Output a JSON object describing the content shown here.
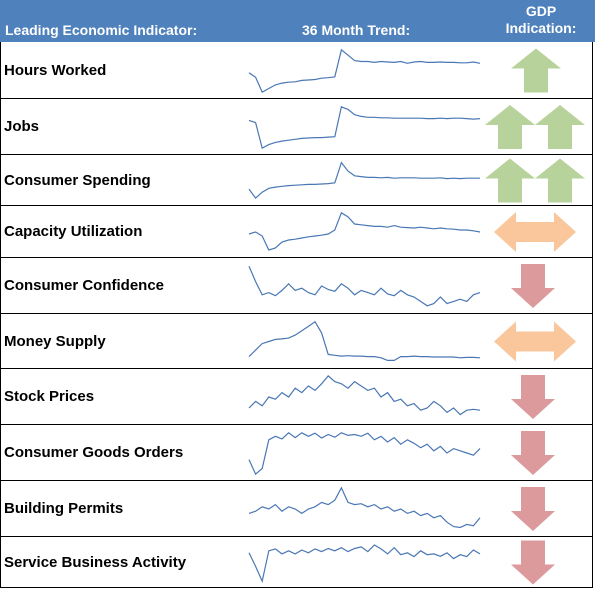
{
  "header": {
    "indicator_label": "Leading Economic Indicator:",
    "trend_label": "36 Month Trend:",
    "gdp_label_line1": "GDP",
    "gdp_label_line2": "Indication:"
  },
  "colors": {
    "header_bg": "#4f81bd",
    "header_text": "#ffffff",
    "sparkline": "#4a77b4",
    "arrow_up": "#b7d39b",
    "arrow_neutral": "#f9c79b",
    "arrow_down": "#dc9a9c"
  },
  "chart_data": {
    "type": "line",
    "title": "",
    "xlabel": "",
    "ylabel": "",
    "x": [
      1,
      2,
      3,
      4,
      5,
      6,
      7,
      8,
      9,
      10,
      11,
      12,
      13,
      14,
      15,
      16,
      17,
      18,
      19,
      20,
      21,
      22,
      23,
      24,
      25,
      26,
      27,
      28,
      29,
      30,
      31,
      32,
      33,
      34,
      35,
      36
    ],
    "rows": [
      {
        "label": "Hours Worked",
        "signal": "up",
        "arrows": 1,
        "values": [
          0.45,
          0.35,
          0.02,
          0.1,
          0.18,
          0.22,
          0.24,
          0.25,
          0.28,
          0.29,
          0.3,
          0.33,
          0.34,
          0.36,
          0.96,
          0.84,
          0.72,
          0.7,
          0.7,
          0.68,
          0.7,
          0.69,
          0.68,
          0.7,
          0.66,
          0.69,
          0.7,
          0.68,
          0.68,
          0.69,
          0.68,
          0.68,
          0.67,
          0.67,
          0.69,
          0.66
        ]
      },
      {
        "label": "Jobs",
        "signal": "up",
        "arrows": 2,
        "values": [
          0.65,
          0.6,
          0.02,
          0.1,
          0.15,
          0.18,
          0.2,
          0.22,
          0.24,
          0.25,
          0.26,
          0.26,
          0.27,
          0.28,
          0.96,
          0.9,
          0.78,
          0.74,
          0.72,
          0.72,
          0.71,
          0.71,
          0.7,
          0.7,
          0.7,
          0.7,
          0.7,
          0.69,
          0.69,
          0.7,
          0.69,
          0.7,
          0.7,
          0.69,
          0.68,
          0.69
        ]
      },
      {
        "label": "Consumer Spending",
        "signal": "up",
        "arrows": 2,
        "values": [
          0.28,
          0.05,
          0.2,
          0.3,
          0.33,
          0.35,
          0.37,
          0.38,
          0.39,
          0.4,
          0.4,
          0.41,
          0.42,
          0.44,
          0.96,
          0.74,
          0.62,
          0.6,
          0.58,
          0.58,
          0.57,
          0.58,
          0.56,
          0.57,
          0.57,
          0.57,
          0.56,
          0.56,
          0.56,
          0.57,
          0.55,
          0.56,
          0.55,
          0.56,
          0.56,
          0.56
        ]
      },
      {
        "label": "Capacity Utilization",
        "signal": "neutral",
        "arrows": 1,
        "values": [
          0.45,
          0.5,
          0.4,
          0.05,
          0.1,
          0.25,
          0.3,
          0.32,
          0.35,
          0.38,
          0.4,
          0.42,
          0.45,
          0.55,
          0.98,
          0.88,
          0.7,
          0.68,
          0.66,
          0.64,
          0.64,
          0.62,
          0.66,
          0.62,
          0.61,
          0.6,
          0.62,
          0.6,
          0.58,
          0.6,
          0.58,
          0.57,
          0.55,
          0.55,
          0.53,
          0.5
        ]
      },
      {
        "label": "Consumer Confidence",
        "signal": "down",
        "arrows": 1,
        "values": [
          0.95,
          0.6,
          0.3,
          0.35,
          0.28,
          0.4,
          0.55,
          0.4,
          0.45,
          0.35,
          0.3,
          0.5,
          0.42,
          0.38,
          0.55,
          0.45,
          0.3,
          0.4,
          0.35,
          0.3,
          0.45,
          0.32,
          0.28,
          0.4,
          0.3,
          0.25,
          0.15,
          0.05,
          0.1,
          0.25,
          0.1,
          0.15,
          0.2,
          0.15,
          0.3,
          0.35
        ]
      },
      {
        "label": "Money Supply",
        "signal": "neutral",
        "arrows": 1,
        "values": [
          0.15,
          0.3,
          0.45,
          0.5,
          0.55,
          0.56,
          0.58,
          0.65,
          0.75,
          0.85,
          0.96,
          0.7,
          0.2,
          0.18,
          0.16,
          0.17,
          0.16,
          0.16,
          0.15,
          0.15,
          0.12,
          0.06,
          0.06,
          0.15,
          0.15,
          0.16,
          0.15,
          0.15,
          0.14,
          0.14,
          0.14,
          0.14,
          0.12,
          0.13,
          0.13,
          0.12
        ]
      },
      {
        "label": "Stock Prices",
        "signal": "down",
        "arrows": 1,
        "values": [
          0.25,
          0.4,
          0.3,
          0.5,
          0.45,
          0.6,
          0.5,
          0.7,
          0.6,
          0.75,
          0.65,
          0.8,
          0.98,
          0.85,
          0.8,
          0.7,
          0.85,
          0.75,
          0.65,
          0.7,
          0.5,
          0.6,
          0.4,
          0.45,
          0.3,
          0.35,
          0.2,
          0.25,
          0.4,
          0.3,
          0.15,
          0.25,
          0.1,
          0.2,
          0.22,
          0.2
        ]
      },
      {
        "label": "Consumer Goods Orders",
        "signal": "down",
        "arrows": 1,
        "values": [
          0.35,
          0.02,
          0.15,
          0.8,
          0.88,
          0.82,
          0.96,
          0.85,
          0.96,
          0.88,
          0.95,
          0.84,
          0.92,
          0.86,
          0.96,
          0.9,
          0.92,
          0.88,
          0.95,
          0.8,
          0.88,
          0.75,
          0.85,
          0.7,
          0.8,
          0.72,
          0.62,
          0.7,
          0.55,
          0.65,
          0.5,
          0.6,
          0.55,
          0.5,
          0.45,
          0.6
        ]
      },
      {
        "label": "Building Permits",
        "signal": "down",
        "arrows": 1,
        "values": [
          0.4,
          0.45,
          0.55,
          0.5,
          0.6,
          0.45,
          0.55,
          0.5,
          0.4,
          0.5,
          0.55,
          0.65,
          0.6,
          0.7,
          0.98,
          0.65,
          0.6,
          0.62,
          0.55,
          0.6,
          0.5,
          0.55,
          0.45,
          0.5,
          0.4,
          0.45,
          0.35,
          0.4,
          0.3,
          0.35,
          0.2,
          0.1,
          0.08,
          0.15,
          0.12,
          0.3
        ]
      },
      {
        "label": "Service Business Activity",
        "signal": "down",
        "arrows": 1,
        "values": [
          0.75,
          0.4,
          0.02,
          0.8,
          0.85,
          0.72,
          0.8,
          0.72,
          0.82,
          0.75,
          0.85,
          0.78,
          0.86,
          0.8,
          0.88,
          0.78,
          0.86,
          0.9,
          0.78,
          0.95,
          0.85,
          0.72,
          0.88,
          0.7,
          0.75,
          0.65,
          0.8,
          0.7,
          0.72,
          0.66,
          0.75,
          0.6,
          0.7,
          0.65,
          0.82,
          0.72
        ]
      }
    ]
  }
}
